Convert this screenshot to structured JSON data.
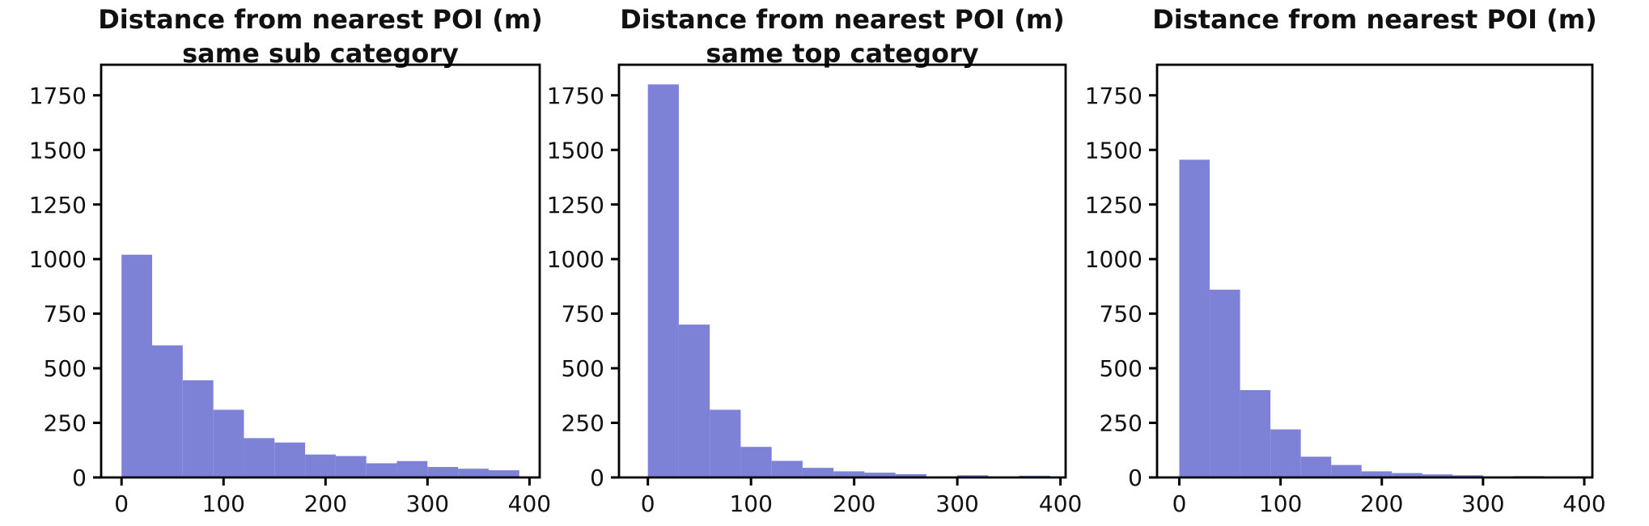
{
  "figure": {
    "background": "#ffffff",
    "axis_color": "#000000",
    "text_color": "#111111"
  },
  "chart_data": [
    {
      "type": "bar",
      "subtype": "histogram",
      "title": "Distance from nearest POI (m)",
      "subtitle": "same sub category",
      "bar_color": "#7d82d6",
      "bins": {
        "start": 0,
        "width": 30
      },
      "counts": [
        1020,
        605,
        445,
        310,
        180,
        160,
        105,
        98,
        65,
        75,
        48,
        40,
        33
      ],
      "xlim": [
        -20,
        410
      ],
      "ylim": [
        0,
        1890
      ],
      "xticks": [
        0,
        100,
        200,
        300,
        400
      ],
      "yticks": [
        0,
        250,
        500,
        750,
        1000,
        1250,
        1500,
        1750
      ],
      "xlabel": "",
      "ylabel": "",
      "grid": false,
      "legend": null
    },
    {
      "type": "bar",
      "subtype": "histogram",
      "title": "Distance from nearest POI (m)",
      "subtitle": "same top category",
      "bar_color": "#7d82d6",
      "bins": {
        "start": 0,
        "width": 30
      },
      "counts": [
        1800,
        700,
        310,
        140,
        76,
        44,
        28,
        22,
        15,
        0,
        10,
        0,
        8
      ],
      "xlim": [
        -28,
        405
      ],
      "ylim": [
        0,
        1890
      ],
      "xticks": [
        0,
        100,
        200,
        300,
        400
      ],
      "yticks": [
        0,
        250,
        500,
        750,
        1000,
        1250,
        1500,
        1750
      ],
      "xlabel": "",
      "ylabel": "",
      "grid": false,
      "legend": null
    },
    {
      "type": "bar",
      "subtype": "histogram",
      "title": "Distance from nearest POI (m)",
      "subtitle": "",
      "bar_color": "#7d82d6",
      "bins": {
        "start": 0,
        "width": 30
      },
      "counts": [
        1455,
        860,
        400,
        220,
        95,
        57,
        28,
        20,
        14,
        10,
        0,
        6,
        0
      ],
      "xlim": [
        -22,
        408
      ],
      "ylim": [
        0,
        1890
      ],
      "xticks": [
        0,
        100,
        200,
        300,
        400
      ],
      "yticks": [
        0,
        250,
        500,
        750,
        1000,
        1250,
        1500,
        1750
      ],
      "xlabel": "",
      "ylabel": "",
      "grid": false,
      "legend": null
    }
  ]
}
